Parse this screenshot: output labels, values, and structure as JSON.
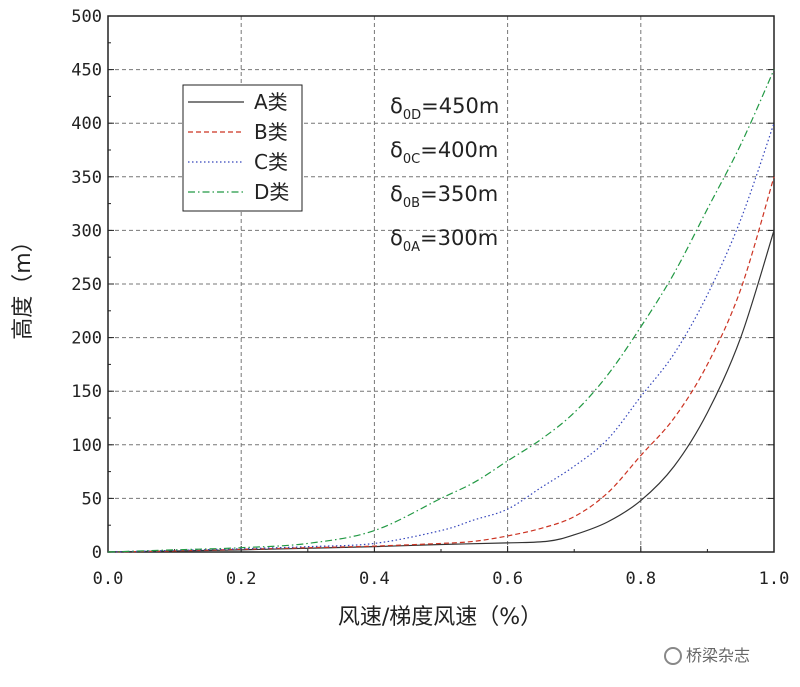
{
  "chart_data": {
    "type": "line",
    "title": "",
    "xlabel": "风速/梯度风速（%）",
    "ylabel": "高度（m）",
    "xlim": [
      0,
      1.0
    ],
    "ylim": [
      0,
      500
    ],
    "xticks": [
      0.0,
      0.2,
      0.4,
      0.6,
      0.8,
      1.0
    ],
    "xtick_labels": [
      "0.0",
      "0.2",
      "0.4",
      "0.6",
      "0.8",
      "1.0"
    ],
    "yticks": [
      0,
      50,
      100,
      150,
      200,
      250,
      300,
      350,
      400,
      450,
      500
    ],
    "ytick_labels": [
      "0",
      "50",
      "100",
      "150",
      "200",
      "250",
      "300",
      "350",
      "400",
      "450",
      "500"
    ],
    "grid": true,
    "legend_position": "top-left",
    "series": [
      {
        "name": "A类",
        "color": "#333333",
        "style": "solid",
        "points": [
          [
            0,
            0
          ],
          [
            0.1,
            1
          ],
          [
            0.2,
            2
          ],
          [
            0.3,
            3.5
          ],
          [
            0.4,
            5
          ],
          [
            0.5,
            7
          ],
          [
            0.6,
            8.5
          ],
          [
            0.66,
            10
          ],
          [
            0.7,
            16
          ],
          [
            0.75,
            28
          ],
          [
            0.8,
            48
          ],
          [
            0.85,
            80
          ],
          [
            0.9,
            130
          ],
          [
            0.95,
            200
          ],
          [
            1.0,
            300
          ]
        ]
      },
      {
        "name": "B类",
        "color": "#cc3322",
        "style": "dashed",
        "points": [
          [
            0,
            0
          ],
          [
            0.1,
            1
          ],
          [
            0.2,
            2.5
          ],
          [
            0.3,
            4
          ],
          [
            0.4,
            5.5
          ],
          [
            0.5,
            8
          ],
          [
            0.55,
            10
          ],
          [
            0.6,
            15
          ],
          [
            0.65,
            22
          ],
          [
            0.7,
            33
          ],
          [
            0.75,
            55
          ],
          [
            0.8,
            90
          ],
          [
            0.85,
            125
          ],
          [
            0.9,
            175
          ],
          [
            0.95,
            245
          ],
          [
            1.0,
            350
          ]
        ]
      },
      {
        "name": "C类",
        "color": "#3344bb",
        "style": "dotted",
        "points": [
          [
            0,
            0
          ],
          [
            0.1,
            1.5
          ],
          [
            0.2,
            3
          ],
          [
            0.3,
            5
          ],
          [
            0.4,
            8
          ],
          [
            0.5,
            20
          ],
          [
            0.55,
            30
          ],
          [
            0.6,
            40
          ],
          [
            0.65,
            60
          ],
          [
            0.7,
            80
          ],
          [
            0.75,
            105
          ],
          [
            0.8,
            145
          ],
          [
            0.85,
            185
          ],
          [
            0.9,
            240
          ],
          [
            0.95,
            310
          ],
          [
            1.0,
            400
          ]
        ]
      },
      {
        "name": "D类",
        "color": "#229944",
        "style": "dashdot",
        "points": [
          [
            0,
            0
          ],
          [
            0.1,
            2
          ],
          [
            0.2,
            4
          ],
          [
            0.3,
            8
          ],
          [
            0.4,
            20
          ],
          [
            0.5,
            50
          ],
          [
            0.55,
            65
          ],
          [
            0.6,
            85
          ],
          [
            0.65,
            105
          ],
          [
            0.7,
            130
          ],
          [
            0.75,
            165
          ],
          [
            0.8,
            210
          ],
          [
            0.85,
            260
          ],
          [
            0.9,
            320
          ],
          [
            0.95,
            380
          ],
          [
            1.0,
            450
          ]
        ]
      }
    ],
    "annotations": [
      {
        "main": "δ",
        "sub": "0D",
        "rest": "=450m"
      },
      {
        "main": "δ",
        "sub": "0C",
        "rest": "=400m"
      },
      {
        "main": "δ",
        "sub": "0B",
        "rest": "=350m"
      },
      {
        "main": "δ",
        "sub": "0A",
        "rest": "=300m"
      }
    ]
  },
  "watermark": {
    "text": "桥梁杂志",
    "icon": "wechat-icon"
  }
}
